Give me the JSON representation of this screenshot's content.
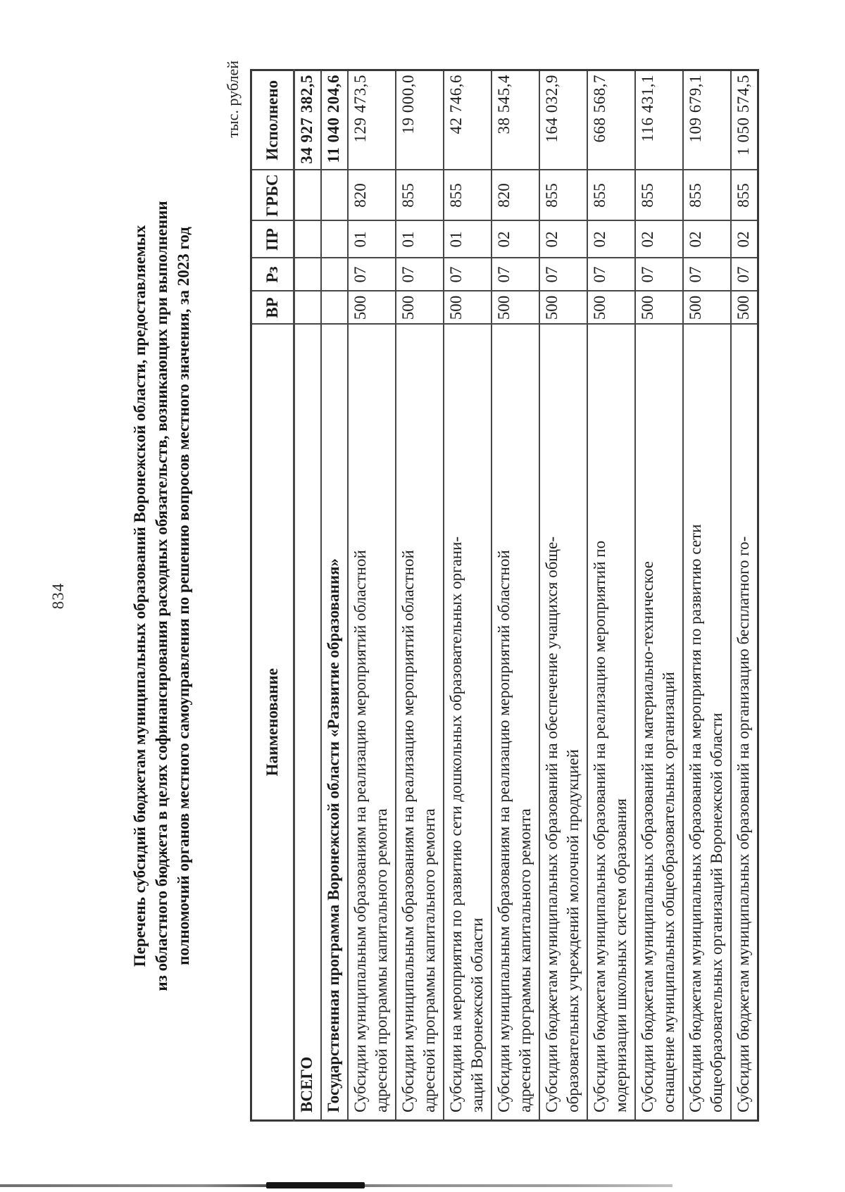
{
  "page": {
    "number": "834",
    "units_label": "тыс. рублей"
  },
  "title": {
    "lines": [
      "Перечень субсидий бюджетам муниципальных образований Воронежской области, предоставляемых",
      "из областного бюджета в целях софинансирования расходных обязательств, возникающих при выполнении",
      "полномочий органов местного самоуправления по решению вопросов местного значения, за 2023 год"
    ]
  },
  "table": {
    "headers": {
      "name": "Наименование",
      "vr": "ВР",
      "rz": "Рз",
      "pr": "ПР",
      "grbs": "ГРБС",
      "executed": "Исполнено"
    },
    "rows": [
      {
        "name": "ВСЕГО",
        "vr": "",
        "rz": "",
        "pr": "",
        "grbs": "",
        "executed": "34 927 382,5",
        "bold": true
      },
      {
        "name": "Государственная программа Воронежской области «Развитие образования»",
        "vr": "",
        "rz": "",
        "pr": "",
        "grbs": "",
        "executed": "11 040 204,6",
        "bold": true
      },
      {
        "name": "Субсидии муниципальным образованиям на реализацию мероприятий областной\nадресной программы капитального ремонта",
        "vr": "500",
        "rz": "07",
        "pr": "01",
        "grbs": "820",
        "executed": "129 473,5",
        "bold": false
      },
      {
        "name": "Субсидии муниципальным образованиям на реализацию мероприятий областной\nадресной программы капитального ремонта",
        "vr": "500",
        "rz": "07",
        "pr": "01",
        "grbs": "855",
        "executed": "19 000,0",
        "bold": false
      },
      {
        "name": "Субсидии на мероприятия по развитию сети дошкольных образовательных органи-\nзаций Воронежской области",
        "vr": "500",
        "rz": "07",
        "pr": "01",
        "grbs": "855",
        "executed": "42 746,6",
        "bold": false
      },
      {
        "name": "Субсидии муниципальным образованиям на реализацию мероприятий областной\nадресной программы капитального ремонта",
        "vr": "500",
        "rz": "07",
        "pr": "02",
        "grbs": "820",
        "executed": "38 545,4",
        "bold": false
      },
      {
        "name": "Субсидии бюджетам муниципальных образований  на обеспечение учащихся обще-\nобразовательных учреждений молочной продукцией",
        "vr": "500",
        "rz": "07",
        "pr": "02",
        "grbs": "855",
        "executed": "164 032,9",
        "bold": false
      },
      {
        "name": "Субсидии бюджетам муниципальных образований  на реализацию мероприятий по\nмодернизации школьных систем образования",
        "vr": "500",
        "rz": "07",
        "pr": "02",
        "grbs": "855",
        "executed": "668 568,7",
        "bold": false
      },
      {
        "name": "Субсидии бюджетам муниципальных образований на материально-техническое\nоснащение муниципальных общеобразовательных организаций",
        "vr": "500",
        "rz": "07",
        "pr": "02",
        "grbs": "855",
        "executed": "116 431,1",
        "bold": false
      },
      {
        "name": "Субсидии бюджетам муниципальных образований на мероприятия по развитию сети\nобщеобразовательных организаций Воронежской области",
        "vr": "500",
        "rz": "07",
        "pr": "02",
        "grbs": "855",
        "executed": "109 679,1",
        "bold": false
      },
      {
        "name": "Субсидии бюджетам муниципальных образований на организацию бесплатного го-",
        "vr": "500",
        "rz": "07",
        "pr": "02",
        "grbs": "855",
        "executed": "1 050 574,5",
        "bold": false
      }
    ]
  },
  "colors": {
    "paper": "#ffffff",
    "ink": "#1b1b1b",
    "border": "#474747"
  }
}
